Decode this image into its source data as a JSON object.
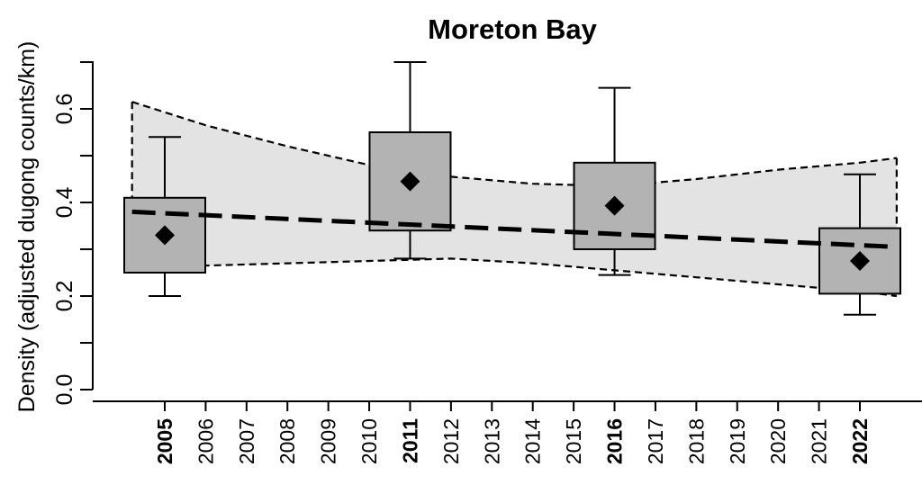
{
  "chart_data": {
    "type": "box",
    "title": "Moreton Bay",
    "ylabel": "Density (adjusted dugong counts/km)",
    "xlabel": "",
    "ylim": [
      -0.02,
      0.72
    ],
    "yticks": [
      0.0,
      0.2,
      0.4,
      0.6
    ],
    "yticks_labeled": [
      "0.0",
      "0.2",
      "0.4",
      "0.6"
    ],
    "x_range": [
      2004.0,
      2022.95
    ],
    "x_ticks": [
      "2005",
      "2006",
      "2007",
      "2008",
      "2009",
      "2010",
      "2011",
      "2012",
      "2013",
      "2014",
      "2015",
      "2016",
      "2017",
      "2018",
      "2019",
      "2020",
      "2021",
      "2022"
    ],
    "x_bold": [
      "2005",
      "2011",
      "2016",
      "2022"
    ],
    "boxes": [
      {
        "year": 2005,
        "whisker_low": 0.2,
        "q1": 0.25,
        "q3": 0.41,
        "whisker_high": 0.54,
        "mean": 0.33
      },
      {
        "year": 2011,
        "whisker_low": 0.28,
        "q1": 0.34,
        "q3": 0.55,
        "whisker_high": 0.7,
        "mean": 0.445
      },
      {
        "year": 2016,
        "whisker_low": 0.245,
        "q1": 0.3,
        "q3": 0.485,
        "whisker_high": 0.645,
        "mean": 0.393
      },
      {
        "year": 2022,
        "whisker_low": 0.16,
        "q1": 0.205,
        "q3": 0.345,
        "whisker_high": 0.46,
        "mean": 0.275
      }
    ],
    "trend": {
      "x": [
        2004.2,
        2022.9
      ],
      "y": [
        0.38,
        0.305
      ]
    },
    "ci_band": {
      "x": [
        2004.2,
        2006,
        2008,
        2010,
        2012,
        2014,
        2016,
        2018,
        2020,
        2022,
        2022.9
      ],
      "upper": [
        0.615,
        0.565,
        0.52,
        0.48,
        0.455,
        0.44,
        0.435,
        0.45,
        0.47,
        0.485,
        0.495
      ],
      "lower": [
        0.26,
        0.265,
        0.27,
        0.275,
        0.28,
        0.27,
        0.255,
        0.24,
        0.225,
        0.21,
        0.2
      ]
    },
    "colors": {
      "box_fill": "#b3b3b3",
      "band_fill": "#e3e3e3",
      "line": "#000000"
    },
    "grid": false,
    "legend": "none"
  }
}
